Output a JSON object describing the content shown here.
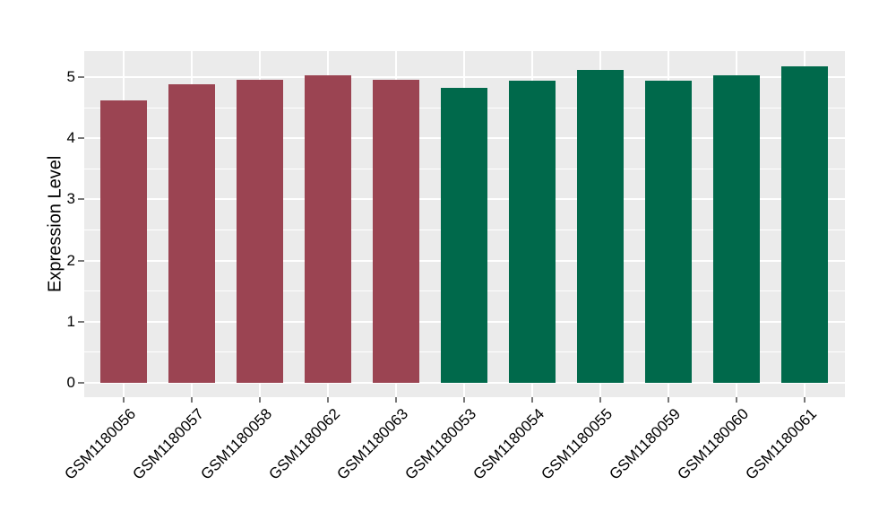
{
  "chart_data": {
    "type": "bar",
    "title": "",
    "xlabel": "",
    "ylabel": "Expression Level",
    "categories": [
      "GSM1180056",
      "GSM1180057",
      "GSM1180058",
      "GSM1180062",
      "GSM1180063",
      "GSM1180053",
      "GSM1180054",
      "GSM1180055",
      "GSM1180059",
      "GSM1180060",
      "GSM1180061"
    ],
    "values": [
      4.62,
      4.88,
      4.96,
      5.03,
      4.96,
      4.83,
      4.95,
      5.12,
      4.95,
      5.04,
      5.18
    ],
    "bar_colors": [
      "#9B4452",
      "#9B4452",
      "#9B4452",
      "#9B4452",
      "#9B4452",
      "#00694B",
      "#00694B",
      "#00694B",
      "#00694B",
      "#00694B",
      "#00694B"
    ],
    "group_colors": {
      "left_group_maroon": "#9B4452",
      "right_group_green": "#00694B"
    },
    "ytick_values": [
      0,
      1,
      2,
      3,
      4,
      5
    ],
    "ytick_labels": [
      "0",
      "1",
      "2",
      "3",
      "4",
      "5"
    ],
    "ylim": [
      -0.24,
      5.43
    ],
    "x_tick_label_rotation_deg": 45,
    "bar_width_fraction": 0.68,
    "panel_background": "#EBEBEB",
    "gridline_color": "#FFFFFF",
    "grid_major": "on",
    "grid_minor": "on",
    "legend_position": "none",
    "axis_text_color": "#000000",
    "tick_mark_color": "#777777"
  }
}
